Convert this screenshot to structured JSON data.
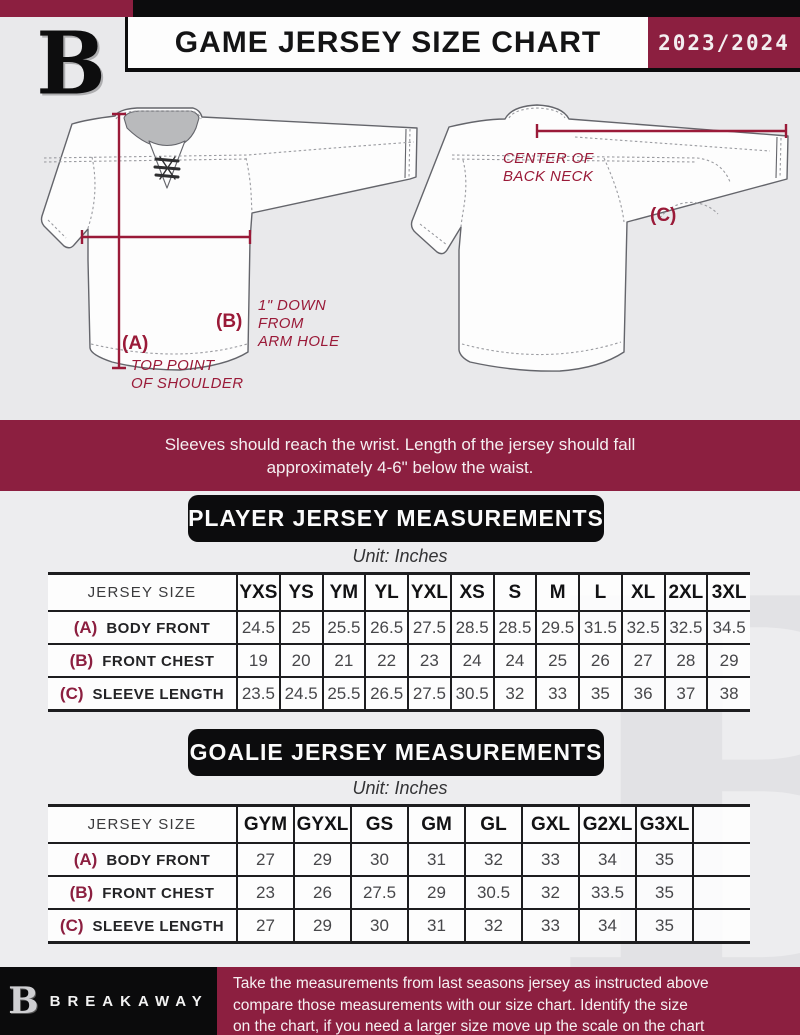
{
  "colors": {
    "maroon": "#8c1f40",
    "measure_line": "#9a1a38",
    "black": "#0c0c0d"
  },
  "header": {
    "logo_letter": "B",
    "title": "GAME JERSEY SIZE CHART",
    "season": "2023/2024"
  },
  "diagram": {
    "front": {
      "a_key": "(A)",
      "a_caption": "TOP POINT\nOF SHOULDER",
      "b_key": "(B)",
      "b_caption": "1\" DOWN\nFROM\nARM HOLE"
    },
    "back": {
      "c_key": "(C)",
      "c_caption": "CENTER OF\nBACK NECK"
    }
  },
  "notice": "Sleeves should reach the wrist. Length of the jersey should fall\napproximately 4-6\" below the waist.",
  "player_table": {
    "title": "PLAYER JERSEY MEASUREMENTS",
    "unit": "Unit: Inches",
    "corner_label": "JERSEY SIZE",
    "sizes": [
      "YXS",
      "YS",
      "YM",
      "YL",
      "YXL",
      "XS",
      "S",
      "M",
      "L",
      "XL",
      "2XL",
      "3XL"
    ],
    "rows": [
      {
        "key": "(A)",
        "label": "BODY FRONT",
        "values": [
          "24.5",
          "25",
          "25.5",
          "26.5",
          "27.5",
          "28.5",
          "28.5",
          "29.5",
          "31.5",
          "32.5",
          "32.5",
          "34.5"
        ]
      },
      {
        "key": "(B)",
        "label": "FRONT CHEST",
        "values": [
          "19",
          "20",
          "21",
          "22",
          "23",
          "24",
          "24",
          "25",
          "26",
          "27",
          "28",
          "29"
        ]
      },
      {
        "key": "(C)",
        "label": "SLEEVE LENGTH",
        "values": [
          "23.5",
          "24.5",
          "25.5",
          "26.5",
          "27.5",
          "30.5",
          "32",
          "33",
          "35",
          "36",
          "37",
          "38"
        ]
      }
    ]
  },
  "goalie_table": {
    "title": "GOALIE JERSEY MEASUREMENTS",
    "unit": "Unit: Inches",
    "corner_label": "JERSEY SIZE",
    "sizes": [
      "GYM",
      "GYXL",
      "GS",
      "GM",
      "GL",
      "GXL",
      "G2XL",
      "G3XL",
      ""
    ],
    "rows": [
      {
        "key": "(A)",
        "label": "BODY FRONT",
        "values": [
          "27",
          "29",
          "30",
          "31",
          "32",
          "33",
          "34",
          "35",
          ""
        ]
      },
      {
        "key": "(B)",
        "label": "FRONT CHEST",
        "values": [
          "23",
          "26",
          "27.5",
          "29",
          "30.5",
          "32",
          "33.5",
          "35",
          ""
        ]
      },
      {
        "key": "(C)",
        "label": "SLEEVE LENGTH",
        "values": [
          "27",
          "29",
          "30",
          "31",
          "32",
          "33",
          "34",
          "35",
          ""
        ]
      }
    ]
  },
  "footer": {
    "brand_letter": "B",
    "brand": "BREAKAWAY",
    "note": "Take the measurements from last seasons jersey as instructed above\ncompare those measurements  with our size chart. Identify the size\non the chart, if you need a larger size move up the scale on the chart"
  }
}
